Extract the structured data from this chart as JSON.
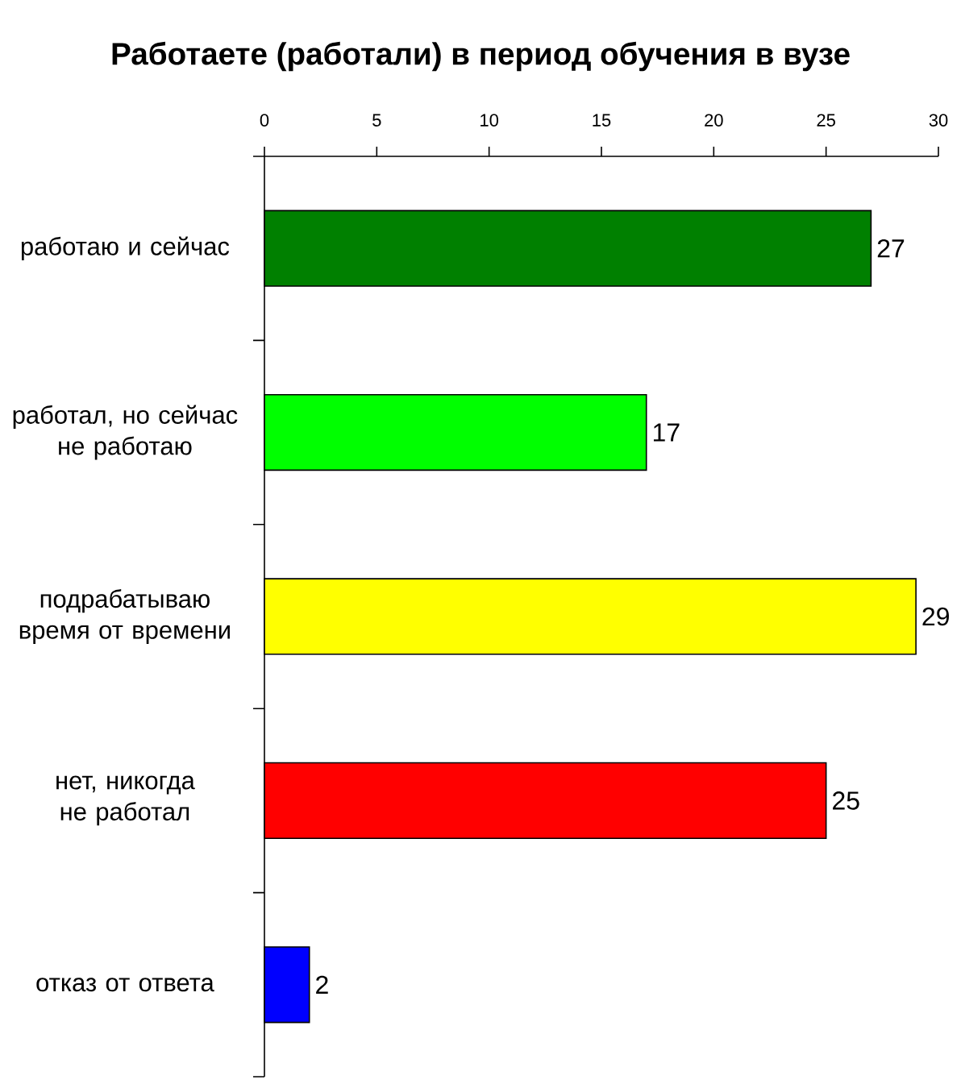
{
  "chart_data": {
    "type": "bar",
    "orientation": "horizontal",
    "title": "Работаете (работали) в период обучения в вузе",
    "categories": [
      "работаю и сейчас",
      "работал, но сейчас не работаю",
      "подрабатываю время от времени",
      "нет, никогда не работал",
      "отказ от ответа"
    ],
    "values": [
      27,
      17,
      29,
      25,
      2
    ],
    "colors": [
      "#008000",
      "#00ff00",
      "#ffff00",
      "#ff0000",
      "#0000ff"
    ],
    "xlim": [
      0,
      30
    ],
    "xticks": [
      0,
      5,
      10,
      15,
      20,
      25,
      30
    ],
    "data_labels": true
  }
}
